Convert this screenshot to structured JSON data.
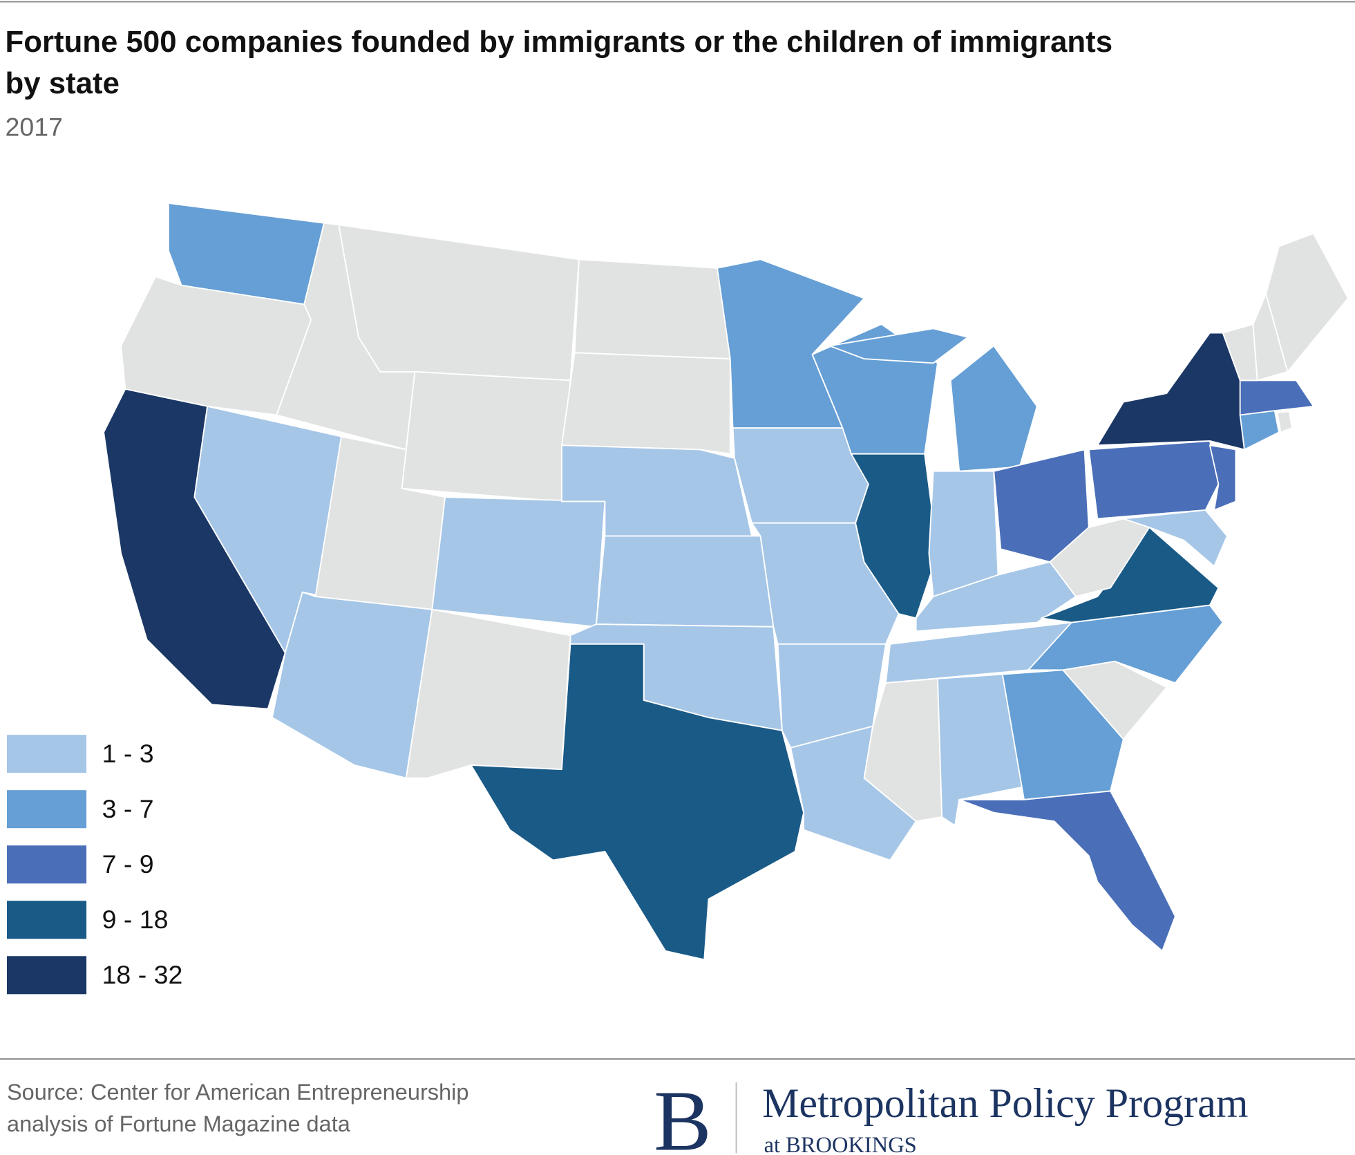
{
  "header": {
    "title": [
      "Fortune 500 companies founded by immigrants or the children of immigrants",
      "by state"
    ],
    "subtitle": "2017"
  },
  "map": {
    "legend": [
      {
        "label": "1 - 3",
        "color": "#a5c6e7"
      },
      {
        "label": "3 - 7",
        "color": "#659fd5"
      },
      {
        "label": "7 - 9",
        "color": "#4a6fb8"
      },
      {
        "label": "9 - 18",
        "color": "#1a5a87"
      },
      {
        "label": "18 - 32",
        "color": "#1b3766"
      }
    ],
    "missing_color": "#e1e2e2"
  },
  "footer": {
    "source": [
      "Source: Center for American Entrepreneurship",
      "analysis of Fortune Magazine data"
    ],
    "logo_letter": "B",
    "program": "Metropolitan Policy Program",
    "affiliation": "at BROOKINGS"
  }
}
